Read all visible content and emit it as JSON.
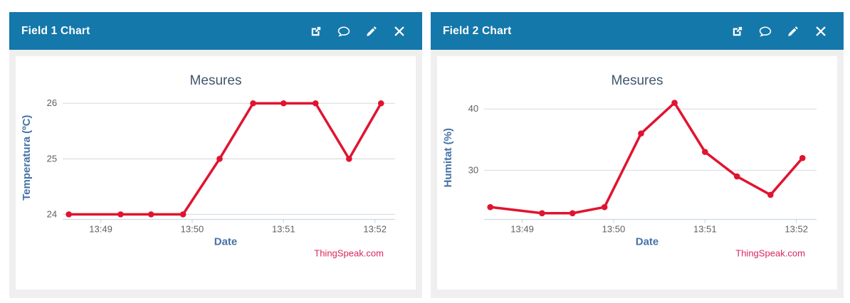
{
  "colors": {
    "header_bg": "#1478ab",
    "header_text": "#ffffff",
    "panel_bg": "#efefef",
    "chart_bg": "#ffffff",
    "chart_title": "#3e576f",
    "axis_title": "#4572a7",
    "tick_text": "#606060",
    "gridline": "#d8d8d8",
    "axis_line": "#c0d0e0",
    "series_red": "#e01430",
    "watermark_pink": "#d9265c"
  },
  "panels": [
    {
      "title": "Field 1 Chart",
      "header_icons": [
        "external-link-icon",
        "comment-icon",
        "edit-icon",
        "close-icon"
      ]
    },
    {
      "title": "Field 2 Chart",
      "header_icons": [
        "external-link-icon",
        "comment-icon",
        "edit-icon",
        "close-icon"
      ]
    }
  ],
  "chart_data": [
    {
      "type": "line",
      "title": "Mesures",
      "xlabel": "Date",
      "ylabel": "Temperatura (ºC)",
      "legend": "none",
      "grid": true,
      "x_ticks": [
        "13:49",
        "13:50",
        "13:51",
        "13:52"
      ],
      "y_ticks": [
        24,
        25,
        26
      ],
      "xlim": [
        "13:48:35",
        "13:52:09"
      ],
      "ylim": [
        23.91,
        26.13
      ],
      "x": [
        "13:48:39",
        "13:49:13",
        "13:49:33",
        "13:49:54",
        "13:50:18",
        "13:50:40",
        "13:51:00",
        "13:51:21",
        "13:51:43",
        "13:52:04"
      ],
      "values": [
        24,
        24,
        24,
        24,
        25,
        26,
        26,
        26,
        25,
        26
      ],
      "line_color": "#e01430",
      "watermark": "ThingSpeak.com"
    },
    {
      "type": "line",
      "title": "Mesures",
      "xlabel": "Date",
      "ylabel": "Humitat (%)",
      "legend": "none",
      "grid": true,
      "x_ticks": [
        "13:49",
        "13:50",
        "13:51",
        "13:52"
      ],
      "y_ticks": [
        30,
        40
      ],
      "xlim": [
        "13:48:35",
        "13:52:09"
      ],
      "ylim": [
        22,
        42.1
      ],
      "x": [
        "13:48:39",
        "13:49:13",
        "13:49:33",
        "13:49:54",
        "13:50:18",
        "13:50:40",
        "13:51:00",
        "13:51:21",
        "13:51:43",
        "13:52:04"
      ],
      "values": [
        24,
        23,
        23,
        24,
        36,
        41,
        33,
        29,
        26,
        32
      ],
      "line_color": "#e01430",
      "watermark": "ThingSpeak.com"
    }
  ]
}
